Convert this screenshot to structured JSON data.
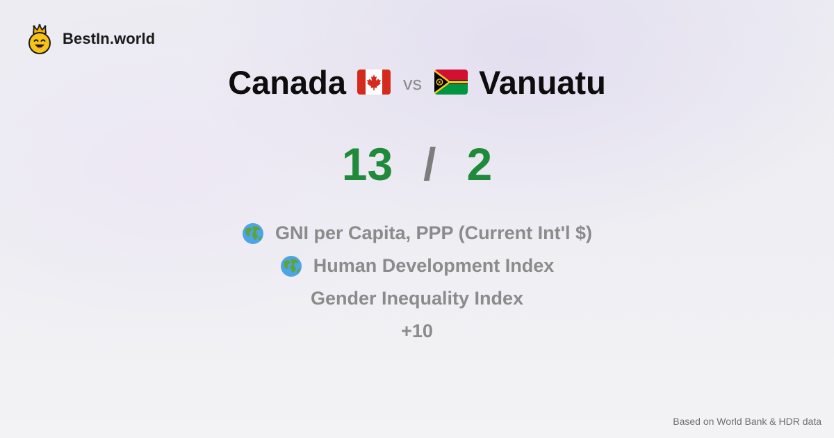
{
  "brand": {
    "name": "BestIn.world",
    "logo_icon": "crowned-smiley-icon"
  },
  "comparison": {
    "left_country": "Canada",
    "left_flag_icon": "canada-flag-icon",
    "vs_label": "vs",
    "right_country": "Vanuatu",
    "right_flag_icon": "vanuatu-flag-icon"
  },
  "score": {
    "left": "13",
    "separator": "/",
    "right": "2"
  },
  "metrics": [
    {
      "label": "GNI per Capita, PPP (Current Int'l $)",
      "icon": "globe-icon"
    },
    {
      "label": "Human Development Index",
      "icon": "globe-icon"
    },
    {
      "label": "Gender Inequality Index",
      "icon": ""
    }
  ],
  "more_label": "+10",
  "footer": {
    "source": "Based on World Bank & HDR data"
  },
  "colors": {
    "score_green": "#1e8a3a",
    "muted_gray": "#8b8b8b"
  }
}
